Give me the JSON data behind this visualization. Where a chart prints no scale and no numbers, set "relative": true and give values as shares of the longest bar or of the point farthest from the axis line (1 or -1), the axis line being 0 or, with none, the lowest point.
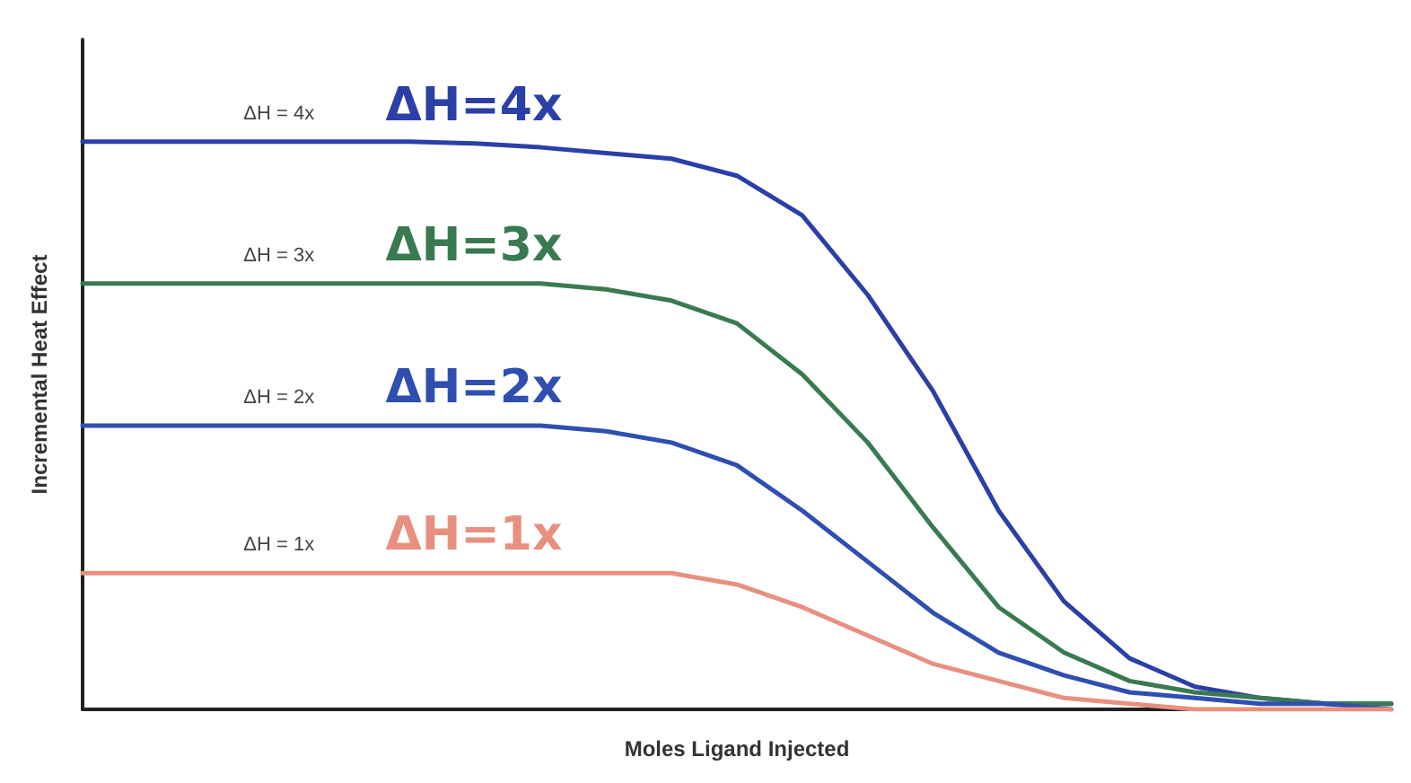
{
  "chart_data": {
    "type": "line",
    "relative": true,
    "xlabel": "Moles Ligand Injected",
    "ylabel": "Incremental Heat Effect",
    "grid": false,
    "legend": false,
    "line_style": "solid",
    "categories": [
      null,
      null,
      null,
      null,
      null,
      null,
      null,
      null,
      null,
      null,
      null,
      null,
      null,
      null,
      null,
      null,
      null,
      null,
      null,
      null,
      null
    ],
    "series": [
      {
        "name": "ΔH=4x",
        "color": "#2b3fa8",
        "values": [
          1,
          1,
          1,
          1,
          1,
          1,
          0.997,
          0.99,
          0.98,
          0.97,
          0.94,
          0.87,
          0.73,
          0.56,
          0.35,
          0.19,
          0.09,
          0.04,
          0.02,
          0.01,
          0.01
        ]
      },
      {
        "name": "ΔH=3x",
        "color": "#3a7a50",
        "values": [
          0.75,
          0.75,
          0.75,
          0.75,
          0.75,
          0.75,
          0.75,
          0.75,
          0.74,
          0.72,
          0.68,
          0.59,
          0.47,
          0.32,
          0.18,
          0.1,
          0.05,
          0.03,
          0.02,
          0.01,
          0.01
        ]
      },
      {
        "name": "ΔH=2x",
        "color": "#2f4fb0",
        "values": [
          0.5,
          0.5,
          0.5,
          0.5,
          0.5,
          0.5,
          0.5,
          0.5,
          0.49,
          0.47,
          0.43,
          0.35,
          0.26,
          0.17,
          0.1,
          0.06,
          0.03,
          0.02,
          0.01,
          0.01,
          0
        ]
      },
      {
        "name": "ΔH=1x",
        "color": "#e89080",
        "values": [
          0.24,
          0.24,
          0.24,
          0.24,
          0.24,
          0.24,
          0.24,
          0.24,
          0.24,
          0.24,
          0.22,
          0.18,
          0.13,
          0.08,
          0.05,
          0.02,
          0.01,
          0,
          0,
          0,
          0
        ]
      }
    ],
    "annotations": [
      "ΔH = 4x",
      "ΔH = 3x",
      "ΔH = 2x",
      "ΔH = 1x"
    ]
  }
}
